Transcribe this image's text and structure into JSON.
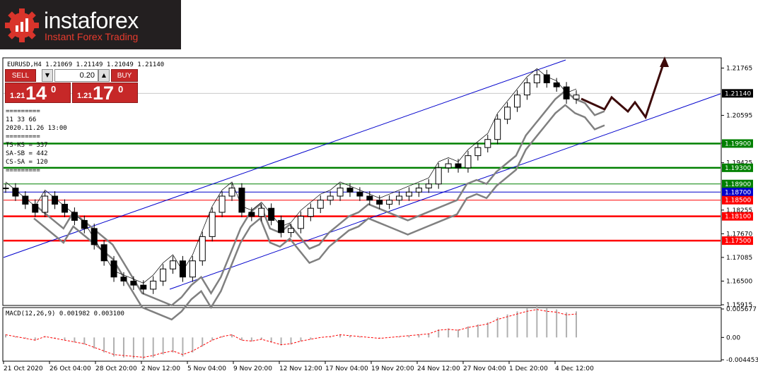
{
  "logo": {
    "brand": "instaforex",
    "tagline": "Instant Forex Trading"
  },
  "header": {
    "symbol_line": "EURUSD,H4  1.21069 1.21149 1.21049 1.21140"
  },
  "trade_panel": {
    "sell_label": "SELL",
    "buy_label": "BUY",
    "lot": "0.20",
    "sell_small": "1.21",
    "sell_big": "14",
    "sell_sup": "0",
    "buy_small": "1.21",
    "buy_big": "17",
    "buy_sup": "0"
  },
  "info_block": [
    "=========",
    "11 33 66",
    "2020.11.26 13:00",
    "=========",
    "TS-KS = 337",
    "SA-SB = 442",
    "CS-SA = 120",
    "========="
  ],
  "colors": {
    "up_red": "#ff0000",
    "green": "#008000",
    "blue": "#0000cc",
    "gray": "#808080",
    "forecast": "#3d0a0a"
  },
  "chart_data": {
    "type": "line",
    "symbol": "EURUSD",
    "timeframe": "H4",
    "ylim": [
      1.15915,
      1.22
    ],
    "y_ticks": [
      "1.21765",
      "1.20595",
      "1.19910",
      "1.19425",
      "1.18255",
      "1.17670",
      "1.17085",
      "1.16500",
      "1.15915"
    ],
    "x_ticks": [
      "21 Oct 2020",
      "26 Oct 04:00",
      "28 Oct 20:00",
      "2 Nov 12:00",
      "5 Nov 04:00",
      "9 Nov 20:00",
      "12 Nov 12:00",
      "17 Nov 04:00",
      "19 Nov 20:00",
      "24 Nov 12:00",
      "27 Nov 04:00",
      "1 Dec 20:00",
      "4 Dec 12:00"
    ],
    "current_price": "1.21140",
    "levels": [
      {
        "value": 1.199,
        "label": "1.19900",
        "color": "#008000",
        "style": "thick"
      },
      {
        "value": 1.193,
        "label": "1.19300",
        "color": "#008000",
        "style": "thick"
      },
      {
        "value": 1.189,
        "label": "1.18900",
        "color": "#008000",
        "style": "thin"
      },
      {
        "value": 1.187,
        "label": "1.18700",
        "color": "#0000cc",
        "style": "thin"
      },
      {
        "value": 1.185,
        "label": "1.18500",
        "color": "#ff0000",
        "style": "thin"
      },
      {
        "value": 1.181,
        "label": "1.18100",
        "color": "#ff0000",
        "style": "thick"
      },
      {
        "value": 1.175,
        "label": "1.17500",
        "color": "#ff0000",
        "style": "thick"
      }
    ],
    "price_path": [
      1.188,
      1.186,
      1.184,
      1.182,
      1.186,
      1.184,
      1.182,
      1.18,
      1.178,
      1.174,
      1.17,
      1.166,
      1.165,
      1.164,
      1.163,
      1.165,
      1.168,
      1.17,
      1.166,
      1.17,
      1.176,
      1.182,
      1.186,
      1.188,
      1.182,
      1.181,
      1.183,
      1.18,
      1.177,
      1.178,
      1.181,
      1.183,
      1.185,
      1.186,
      1.188,
      1.187,
      1.186,
      1.185,
      1.184,
      1.185,
      1.186,
      1.187,
      1.188,
      1.189,
      1.193,
      1.194,
      1.193,
      1.196,
      1.198,
      1.2,
      1.205,
      1.208,
      1.211,
      1.214,
      1.216,
      1.214,
      1.213,
      1.21,
      1.211
    ],
    "macd": {
      "label": "MACD(12,26,9) 0.001982 0.003100",
      "y_ticks": [
        "0.005677",
        "0.00",
        "-0.004453"
      ],
      "ylim": [
        -0.004453,
        0.005677
      ]
    }
  }
}
